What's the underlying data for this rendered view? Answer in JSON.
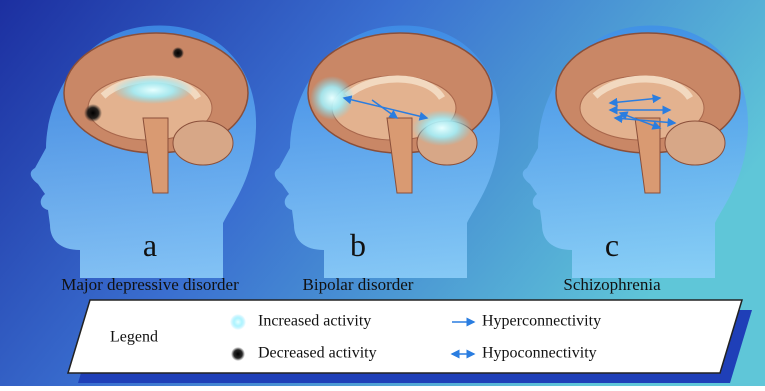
{
  "panels": [
    {
      "letter": "a",
      "title": "Major depressive disorder"
    },
    {
      "letter": "b",
      "title": "Bipolar disorder"
    },
    {
      "letter": "c",
      "title": "Schizophrenia"
    }
  ],
  "legend": {
    "title": "Legend",
    "items": [
      {
        "label": "Increased activity"
      },
      {
        "label": "Decreased activity"
      },
      {
        "label": "Hyperconnectivity"
      },
      {
        "label": "Hypoconnectivity"
      }
    ]
  }
}
